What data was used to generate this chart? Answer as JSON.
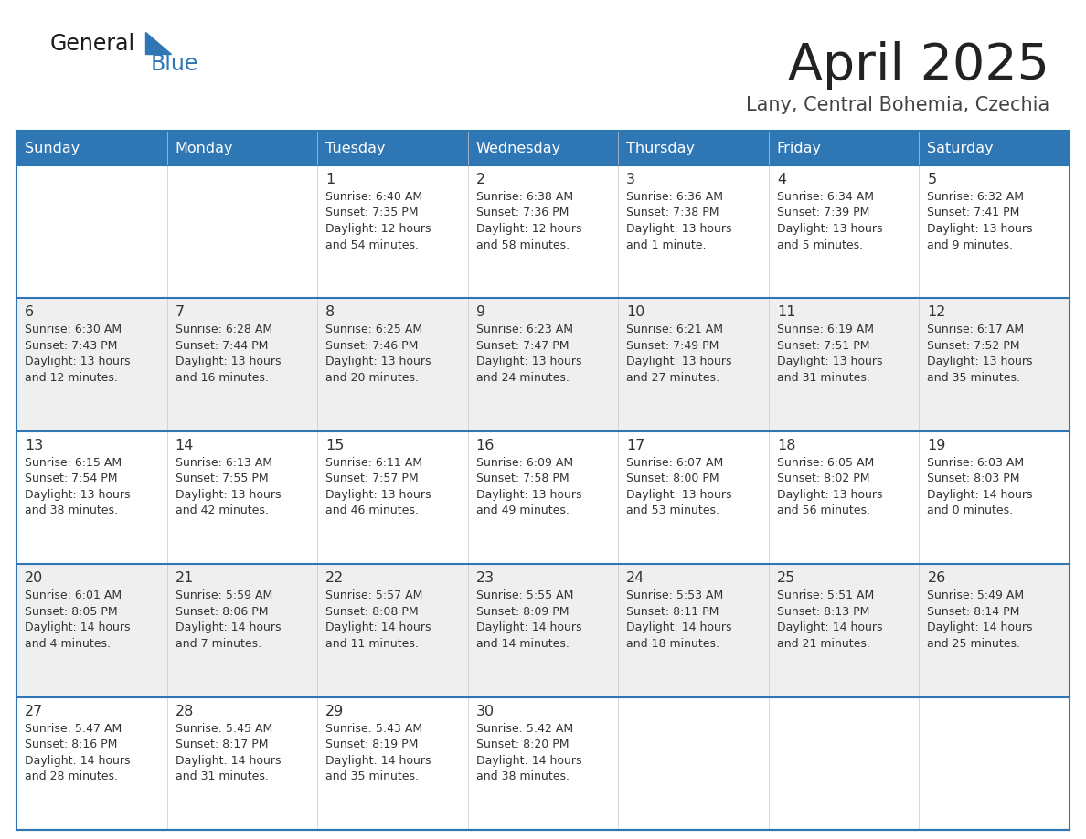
{
  "title": "April 2025",
  "subtitle": "Lany, Central Bohemia, Czechia",
  "days_of_week": [
    "Sunday",
    "Monday",
    "Tuesday",
    "Wednesday",
    "Thursday",
    "Friday",
    "Saturday"
  ],
  "header_bg": "#2E76B4",
  "header_text": "#FFFFFF",
  "cell_bg_odd": "#EFEFEF",
  "cell_bg_even": "#FFFFFF",
  "border_color": "#2E76B4",
  "text_color": "#333333",
  "title_color": "#222222",
  "subtitle_color": "#444444",
  "logo_general_color": "#1a1a1a",
  "logo_blue_color": "#2E76B4",
  "weeks": [
    [
      {
        "day": null,
        "info": null
      },
      {
        "day": null,
        "info": null
      },
      {
        "day": 1,
        "sunrise": "6:40 AM",
        "sunset": "7:35 PM",
        "daylight": "12 hours",
        "daylight2": "and 54 minutes."
      },
      {
        "day": 2,
        "sunrise": "6:38 AM",
        "sunset": "7:36 PM",
        "daylight": "12 hours",
        "daylight2": "and 58 minutes."
      },
      {
        "day": 3,
        "sunrise": "6:36 AM",
        "sunset": "7:38 PM",
        "daylight": "13 hours",
        "daylight2": "and 1 minute."
      },
      {
        "day": 4,
        "sunrise": "6:34 AM",
        "sunset": "7:39 PM",
        "daylight": "13 hours",
        "daylight2": "and 5 minutes."
      },
      {
        "day": 5,
        "sunrise": "6:32 AM",
        "sunset": "7:41 PM",
        "daylight": "13 hours",
        "daylight2": "and 9 minutes."
      }
    ],
    [
      {
        "day": 6,
        "sunrise": "6:30 AM",
        "sunset": "7:43 PM",
        "daylight": "13 hours",
        "daylight2": "and 12 minutes."
      },
      {
        "day": 7,
        "sunrise": "6:28 AM",
        "sunset": "7:44 PM",
        "daylight": "13 hours",
        "daylight2": "and 16 minutes."
      },
      {
        "day": 8,
        "sunrise": "6:25 AM",
        "sunset": "7:46 PM",
        "daylight": "13 hours",
        "daylight2": "and 20 minutes."
      },
      {
        "day": 9,
        "sunrise": "6:23 AM",
        "sunset": "7:47 PM",
        "daylight": "13 hours",
        "daylight2": "and 24 minutes."
      },
      {
        "day": 10,
        "sunrise": "6:21 AM",
        "sunset": "7:49 PM",
        "daylight": "13 hours",
        "daylight2": "and 27 minutes."
      },
      {
        "day": 11,
        "sunrise": "6:19 AM",
        "sunset": "7:51 PM",
        "daylight": "13 hours",
        "daylight2": "and 31 minutes."
      },
      {
        "day": 12,
        "sunrise": "6:17 AM",
        "sunset": "7:52 PM",
        "daylight": "13 hours",
        "daylight2": "and 35 minutes."
      }
    ],
    [
      {
        "day": 13,
        "sunrise": "6:15 AM",
        "sunset": "7:54 PM",
        "daylight": "13 hours",
        "daylight2": "and 38 minutes."
      },
      {
        "day": 14,
        "sunrise": "6:13 AM",
        "sunset": "7:55 PM",
        "daylight": "13 hours",
        "daylight2": "and 42 minutes."
      },
      {
        "day": 15,
        "sunrise": "6:11 AM",
        "sunset": "7:57 PM",
        "daylight": "13 hours",
        "daylight2": "and 46 minutes."
      },
      {
        "day": 16,
        "sunrise": "6:09 AM",
        "sunset": "7:58 PM",
        "daylight": "13 hours",
        "daylight2": "and 49 minutes."
      },
      {
        "day": 17,
        "sunrise": "6:07 AM",
        "sunset": "8:00 PM",
        "daylight": "13 hours",
        "daylight2": "and 53 minutes."
      },
      {
        "day": 18,
        "sunrise": "6:05 AM",
        "sunset": "8:02 PM",
        "daylight": "13 hours",
        "daylight2": "and 56 minutes."
      },
      {
        "day": 19,
        "sunrise": "6:03 AM",
        "sunset": "8:03 PM",
        "daylight": "14 hours",
        "daylight2": "and 0 minutes."
      }
    ],
    [
      {
        "day": 20,
        "sunrise": "6:01 AM",
        "sunset": "8:05 PM",
        "daylight": "14 hours",
        "daylight2": "and 4 minutes."
      },
      {
        "day": 21,
        "sunrise": "5:59 AM",
        "sunset": "8:06 PM",
        "daylight": "14 hours",
        "daylight2": "and 7 minutes."
      },
      {
        "day": 22,
        "sunrise": "5:57 AM",
        "sunset": "8:08 PM",
        "daylight": "14 hours",
        "daylight2": "and 11 minutes."
      },
      {
        "day": 23,
        "sunrise": "5:55 AM",
        "sunset": "8:09 PM",
        "daylight": "14 hours",
        "daylight2": "and 14 minutes."
      },
      {
        "day": 24,
        "sunrise": "5:53 AM",
        "sunset": "8:11 PM",
        "daylight": "14 hours",
        "daylight2": "and 18 minutes."
      },
      {
        "day": 25,
        "sunrise": "5:51 AM",
        "sunset": "8:13 PM",
        "daylight": "14 hours",
        "daylight2": "and 21 minutes."
      },
      {
        "day": 26,
        "sunrise": "5:49 AM",
        "sunset": "8:14 PM",
        "daylight": "14 hours",
        "daylight2": "and 25 minutes."
      }
    ],
    [
      {
        "day": 27,
        "sunrise": "5:47 AM",
        "sunset": "8:16 PM",
        "daylight": "14 hours",
        "daylight2": "and 28 minutes."
      },
      {
        "day": 28,
        "sunrise": "5:45 AM",
        "sunset": "8:17 PM",
        "daylight": "14 hours",
        "daylight2": "and 31 minutes."
      },
      {
        "day": 29,
        "sunrise": "5:43 AM",
        "sunset": "8:19 PM",
        "daylight": "14 hours",
        "daylight2": "and 35 minutes."
      },
      {
        "day": 30,
        "sunrise": "5:42 AM",
        "sunset": "8:20 PM",
        "daylight": "14 hours",
        "daylight2": "and 38 minutes."
      },
      {
        "day": null,
        "info": null
      },
      {
        "day": null,
        "info": null
      },
      {
        "day": null,
        "info": null
      }
    ]
  ]
}
